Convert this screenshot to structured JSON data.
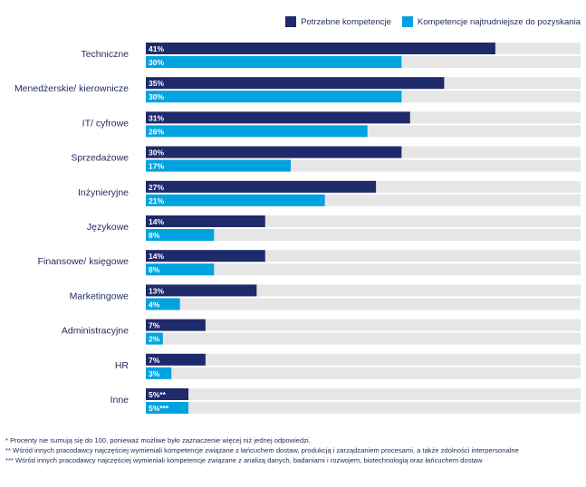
{
  "colors": {
    "needed": "#1f2a6b",
    "hardest": "#00a3e0",
    "track": "#e6e6e6",
    "label": "#1f2a5c"
  },
  "legend": {
    "needed": "Potrzebne kompetencje",
    "hardest": "Kompetencje najtrudniejsze do pozyskania"
  },
  "chart_data": {
    "type": "bar",
    "orientation": "horizontal",
    "categories": [
      "Techniczne",
      "Menedżerskie/ kierownicze",
      "IT/ cyfrowe",
      "Sprzedażowe",
      "Inżynieryjne",
      "Językowe",
      "Finansowe/ księgowe",
      "Marketingowe",
      "Administracyjne",
      "HR",
      "Inne"
    ],
    "series": [
      {
        "name": "Potrzebne kompetencje",
        "values": [
          41,
          35,
          31,
          30,
          27,
          14,
          14,
          13,
          7,
          7,
          5
        ],
        "labels": [
          "41%",
          "35%",
          "31%",
          "30%",
          "27%",
          "14%",
          "14%",
          "13%",
          "7%",
          "7%",
          "5%**"
        ]
      },
      {
        "name": "Kompetencje najtrudniejsze do pozyskania",
        "values": [
          30,
          30,
          26,
          17,
          21,
          8,
          8,
          4,
          2,
          3,
          5
        ],
        "labels": [
          "30%",
          "30%",
          "26%",
          "17%",
          "21%",
          "8%",
          "8%",
          "4%",
          "2%",
          "3%",
          "5%***"
        ]
      }
    ],
    "xlim": [
      0,
      51
    ],
    "legend_position": "top-right",
    "grid": false
  },
  "footnotes": [
    "* Procenty nie sumują się do 100, ponieważ możliwe było zaznaczenie więcej niż jednej odpowiedzi.",
    "** Wśród innych pracodawcy najczęściej wymieniali kompetencje związane z łańcuchem dostaw, produkcją i zarządzaniem procesami, a także zdolności interpersonalne",
    "*** Wśród innych pracodawcy najczęściej wymieniali kompetencje związane z analizą danych, badaniami i rozwojem, biotechnologią oraz łańcuchem dostaw"
  ]
}
